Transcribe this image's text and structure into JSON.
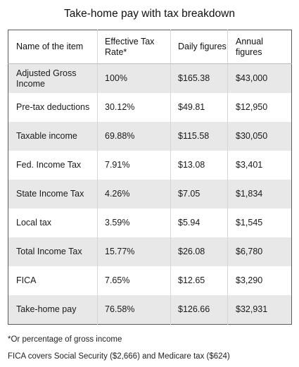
{
  "title": "Take-home pay with tax breakdown",
  "table": {
    "headers": [
      "Name of the item",
      "Effective Tax Rate*",
      "Daily figures",
      "Annual figures"
    ],
    "rows": [
      [
        "Adjusted Gross Income",
        "100%",
        "$165.38",
        "$43,000"
      ],
      [
        "Pre-tax deductions",
        "30.12%",
        "$49.81",
        "$12,950"
      ],
      [
        "Taxable income",
        "69.88%",
        "$115.58",
        "$30,050"
      ],
      [
        "Fed. Income Tax",
        "7.91%",
        "$13.08",
        "$3,401"
      ],
      [
        "State Income Tax",
        "4.26%",
        "$7.05",
        "$1,834"
      ],
      [
        "Local tax",
        "3.59%",
        "$5.94",
        "$1,545"
      ],
      [
        "Total Income Tax",
        "15.77%",
        "$26.08",
        "$6,780"
      ],
      [
        "FICA",
        "7.65%",
        "$12.65",
        "$3,290"
      ],
      [
        "Take-home pay",
        "76.58%",
        "$126.66",
        "$32,931"
      ]
    ]
  },
  "footnotes": {
    "asterisk": "*Or percentage of gross income",
    "fica": "FICA covers Social Security ($2,666) and Medicare tax ($624)"
  },
  "colors": {
    "shaded_row": "#e8e8e8",
    "border": "#5a5a5a"
  }
}
